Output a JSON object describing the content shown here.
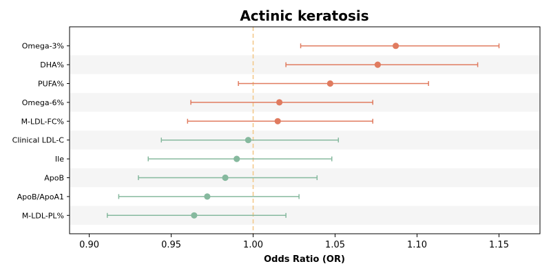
{
  "chart_data": {
    "type": "forest",
    "title": "Actinic keratosis",
    "xlabel": "Odds Ratio (OR)",
    "ylabel": "",
    "xlim": [
      0.888,
      1.175
    ],
    "xticks": [
      0.9,
      0.95,
      1.0,
      1.05,
      1.1,
      1.15
    ],
    "xtick_labels": [
      "0.90",
      "0.95",
      "1.00",
      "1.05",
      "1.10",
      "1.15"
    ],
    "reference_line": 1.0,
    "categories": [
      "Omega-3%",
      "DHA%",
      "PUFA%",
      "Omega-6%",
      "M-LDL-FC%",
      "Clinical LDL-C",
      "Ile",
      "ApoB",
      "ApoB/ApoA1",
      "M-LDL-PL%"
    ],
    "or": [
      1.087,
      1.076,
      1.047,
      1.016,
      1.015,
      0.997,
      0.99,
      0.983,
      0.972,
      0.964
    ],
    "ci_lower": [
      1.029,
      1.02,
      0.991,
      0.962,
      0.96,
      0.944,
      0.936,
      0.93,
      0.918,
      0.911
    ],
    "ci_upper": [
      1.15,
      1.137,
      1.107,
      1.073,
      1.073,
      1.052,
      1.048,
      1.039,
      1.028,
      1.02
    ],
    "colors": {
      "positive": "#e07b5f",
      "negative": "#86b99e",
      "reference": "#f3c98a",
      "stripe": "#f5f5f5"
    }
  }
}
